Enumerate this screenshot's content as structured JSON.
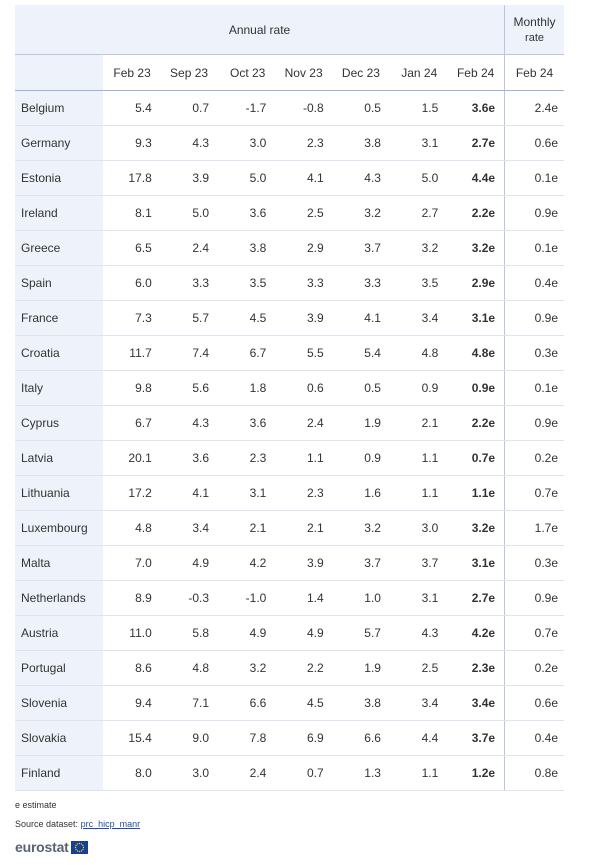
{
  "header": {
    "annual_rate": "Annual rate",
    "monthly_rate_line1": "Monthly",
    "monthly_rate_line2": "rate",
    "months": [
      "Feb 23",
      "Sep 23",
      "Oct 23",
      "Nov 23",
      "Dec 23",
      "Jan 24",
      "Feb 24"
    ],
    "monthly_month": "Feb 24"
  },
  "rows": [
    {
      "country": "Belgium",
      "values": [
        "5.4",
        "0.7",
        "-1.7",
        "-0.8",
        "0.5",
        "1.5",
        "3.6e"
      ],
      "monthly": "2.4e"
    },
    {
      "country": "Germany",
      "values": [
        "9.3",
        "4.3",
        "3.0",
        "2.3",
        "3.8",
        "3.1",
        "2.7e"
      ],
      "monthly": "0.6e"
    },
    {
      "country": "Estonia",
      "values": [
        "17.8",
        "3.9",
        "5.0",
        "4.1",
        "4.3",
        "5.0",
        "4.4e"
      ],
      "monthly": "0.1e"
    },
    {
      "country": "Ireland",
      "values": [
        "8.1",
        "5.0",
        "3.6",
        "2.5",
        "3.2",
        "2.7",
        "2.2e"
      ],
      "monthly": "0.9e"
    },
    {
      "country": "Greece",
      "values": [
        "6.5",
        "2.4",
        "3.8",
        "2.9",
        "3.7",
        "3.2",
        "3.2e"
      ],
      "monthly": "0.1e"
    },
    {
      "country": "Spain",
      "values": [
        "6.0",
        "3.3",
        "3.5",
        "3.3",
        "3.3",
        "3.5",
        "2.9e"
      ],
      "monthly": "0.4e"
    },
    {
      "country": "France",
      "values": [
        "7.3",
        "5.7",
        "4.5",
        "3.9",
        "4.1",
        "3.4",
        "3.1e"
      ],
      "monthly": "0.9e"
    },
    {
      "country": "Croatia",
      "values": [
        "11.7",
        "7.4",
        "6.7",
        "5.5",
        "5.4",
        "4.8",
        "4.8e"
      ],
      "monthly": "0.3e"
    },
    {
      "country": "Italy",
      "values": [
        "9.8",
        "5.6",
        "1.8",
        "0.6",
        "0.5",
        "0.9",
        "0.9e"
      ],
      "monthly": "0.1e"
    },
    {
      "country": "Cyprus",
      "values": [
        "6.7",
        "4.3",
        "3.6",
        "2.4",
        "1.9",
        "2.1",
        "2.2e"
      ],
      "monthly": "0.9e"
    },
    {
      "country": "Latvia",
      "values": [
        "20.1",
        "3.6",
        "2.3",
        "1.1",
        "0.9",
        "1.1",
        "0.7e"
      ],
      "monthly": "0.2e"
    },
    {
      "country": "Lithuania",
      "values": [
        "17.2",
        "4.1",
        "3.1",
        "2.3",
        "1.6",
        "1.1",
        "1.1e"
      ],
      "monthly": "0.7e"
    },
    {
      "country": "Luxembourg",
      "values": [
        "4.8",
        "3.4",
        "2.1",
        "2.1",
        "3.2",
        "3.0",
        "3.2e"
      ],
      "monthly": "1.7e"
    },
    {
      "country": "Malta",
      "values": [
        "7.0",
        "4.9",
        "4.2",
        "3.9",
        "3.7",
        "3.7",
        "3.1e"
      ],
      "monthly": "0.3e"
    },
    {
      "country": "Netherlands",
      "values": [
        "8.9",
        "-0.3",
        "-1.0",
        "1.4",
        "1.0",
        "3.1",
        "2.7e"
      ],
      "monthly": "0.9e"
    },
    {
      "country": "Austria",
      "values": [
        "11.0",
        "5.8",
        "4.9",
        "4.9",
        "5.7",
        "4.3",
        "4.2e"
      ],
      "monthly": "0.7e"
    },
    {
      "country": "Portugal",
      "values": [
        "8.6",
        "4.8",
        "3.2",
        "2.2",
        "1.9",
        "2.5",
        "2.3e"
      ],
      "monthly": "0.2e"
    },
    {
      "country": "Slovenia",
      "values": [
        "9.4",
        "7.1",
        "6.6",
        "4.5",
        "3.8",
        "3.4",
        "3.4e"
      ],
      "monthly": "0.6e"
    },
    {
      "country": "Slovakia",
      "values": [
        "15.4",
        "9.0",
        "7.8",
        "6.9",
        "6.6",
        "4.4",
        "3.7e"
      ],
      "monthly": "0.4e"
    },
    {
      "country": "Finland",
      "values": [
        "8.0",
        "3.0",
        "2.4",
        "0.7",
        "1.3",
        "1.1",
        "1.2e"
      ],
      "monthly": "0.8e"
    }
  ],
  "footer": {
    "note": "e estimate",
    "source_label": "Source dataset:",
    "source_link": "prc_hicp_manr"
  },
  "logo": {
    "text": "eurostat",
    "flag_icon": "eu-flag-icon",
    "flag_color": "#163f9a",
    "star_color": "#f5d000"
  }
}
